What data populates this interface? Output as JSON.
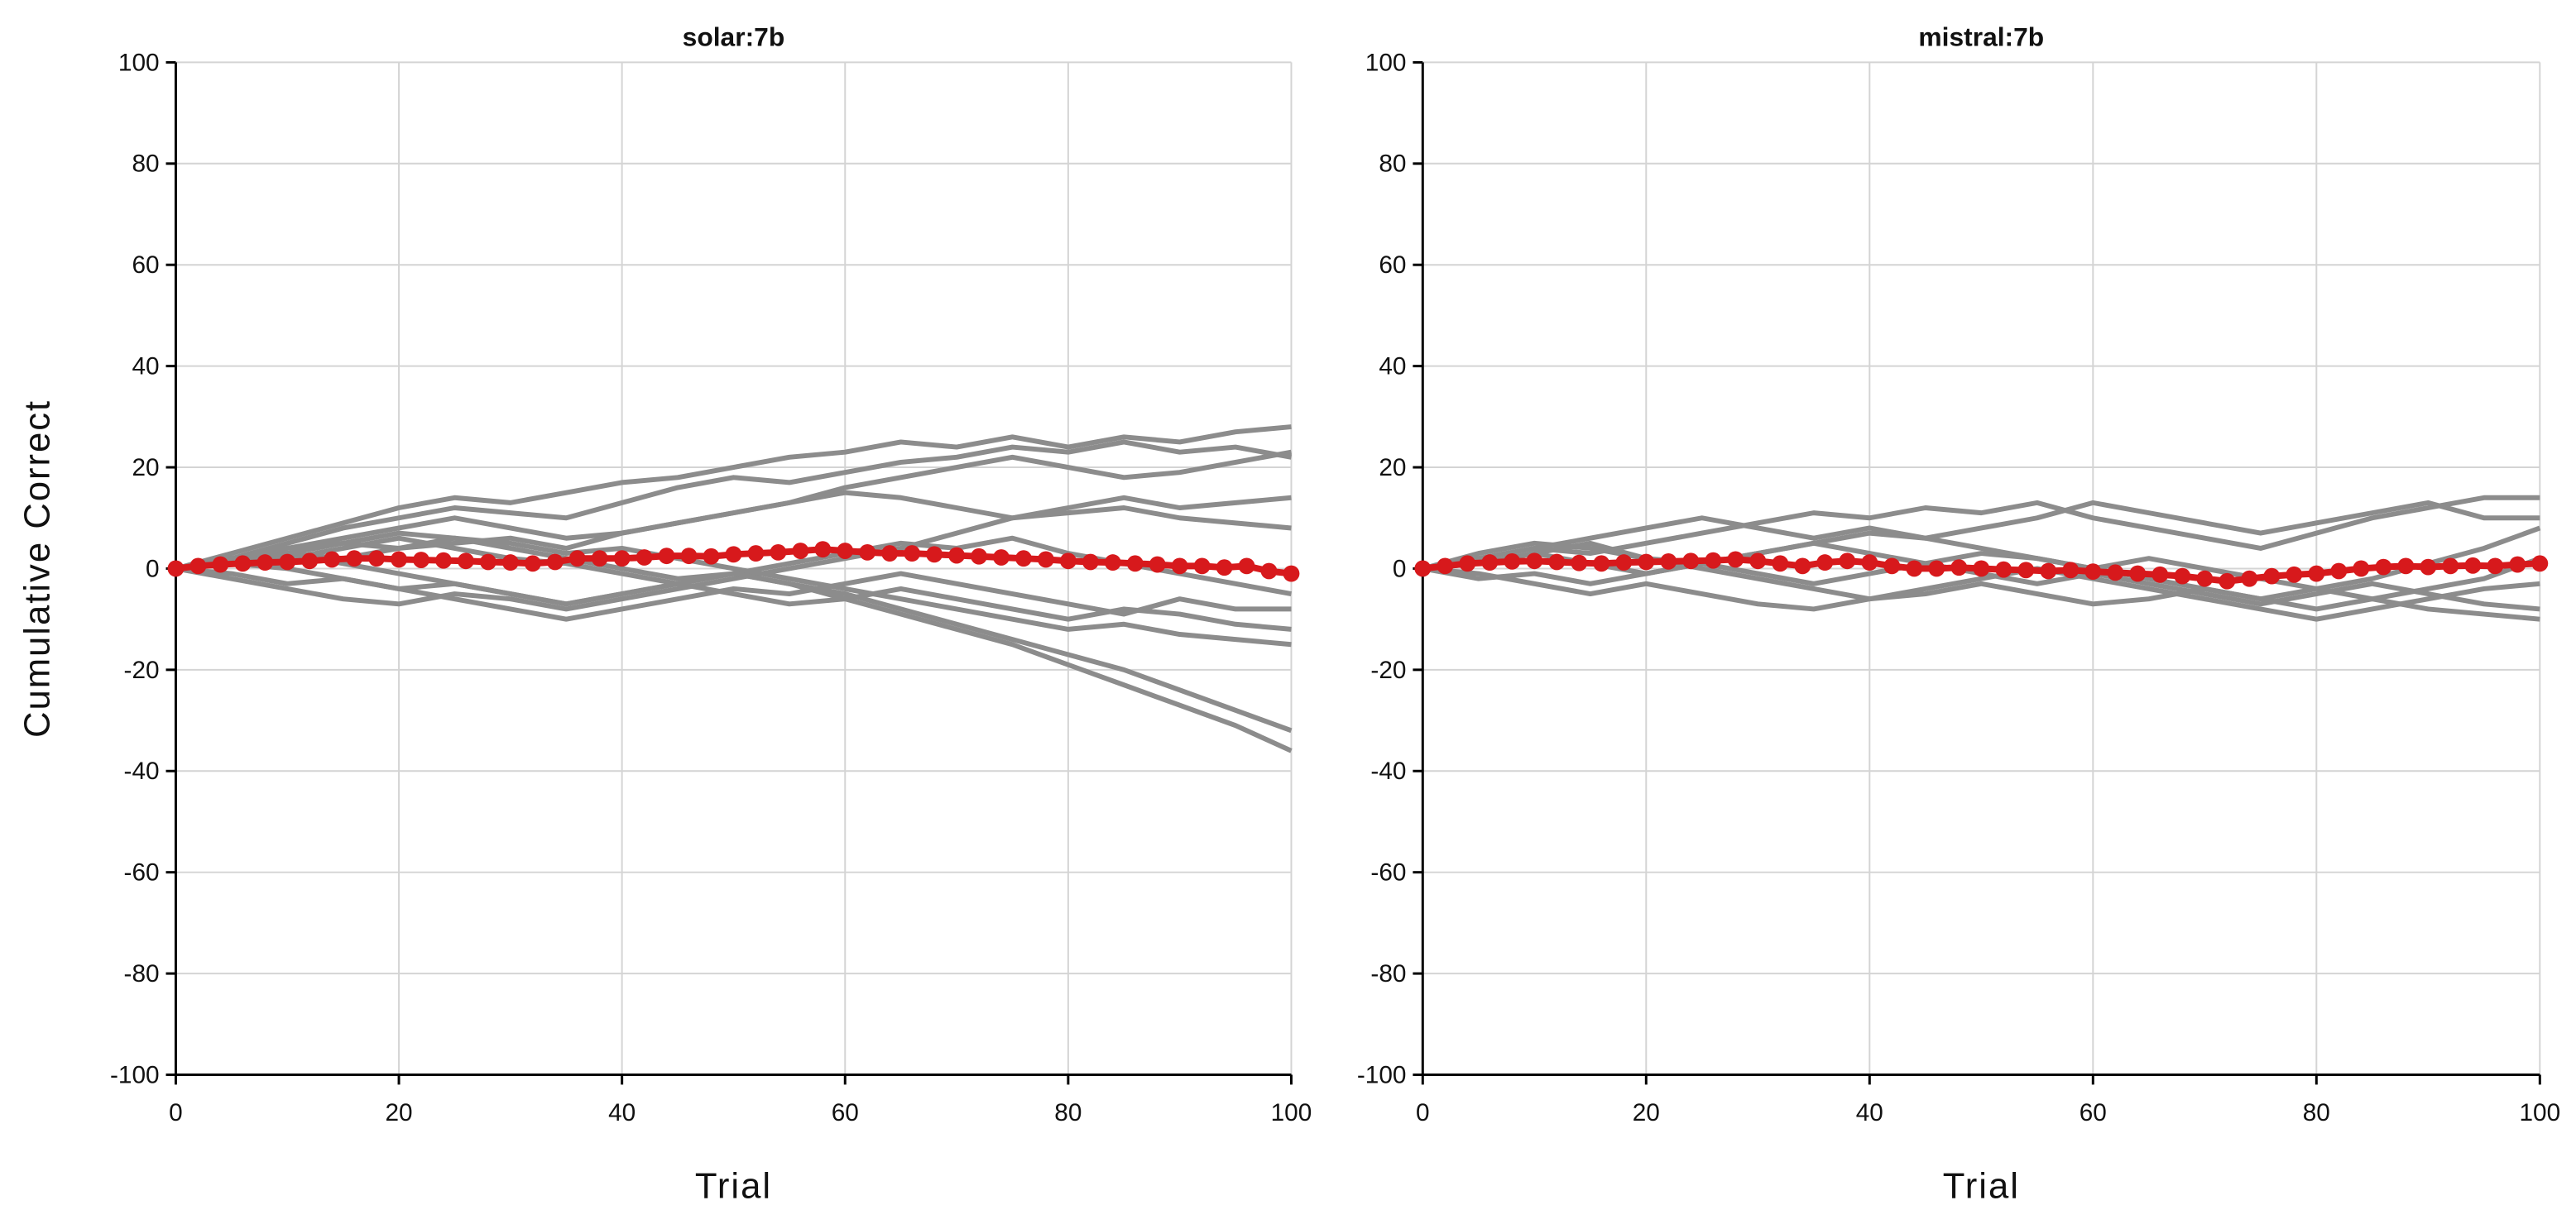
{
  "chart_data": [
    {
      "type": "line",
      "title": "solar:7b",
      "xlabel": "Trial",
      "ylabel": "Cumulative Correct",
      "x": [
        0,
        5,
        10,
        15,
        20,
        25,
        30,
        35,
        40,
        45,
        50,
        55,
        60,
        65,
        70,
        75,
        80,
        85,
        90,
        95,
        100
      ],
      "xlim": [
        0,
        100
      ],
      "xticks": [
        0,
        20,
        40,
        60,
        80,
        100
      ],
      "ylim": [
        -100,
        100
      ],
      "yticks": [
        -100,
        -80,
        -60,
        -40,
        -20,
        0,
        20,
        40,
        60,
        80,
        100
      ],
      "grid": true,
      "series": [
        {
          "color": "#8c8c8c",
          "values": [
            0,
            3,
            6,
            9,
            12,
            14,
            13,
            15,
            17,
            18,
            20,
            22,
            23,
            25,
            24,
            26,
            24,
            26,
            25,
            27,
            28
          ]
        },
        {
          "color": "#8c8c8c",
          "values": [
            0,
            2,
            5,
            8,
            10,
            12,
            11,
            10,
            13,
            16,
            18,
            17,
            19,
            21,
            22,
            24,
            23,
            25,
            23,
            24,
            22
          ]
        },
        {
          "color": "#8c8c8c",
          "values": [
            0,
            -2,
            -4,
            -6,
            -7,
            -5,
            -6,
            -8,
            -6,
            -4,
            -2,
            0,
            2,
            4,
            7,
            10,
            12,
            14,
            12,
            13,
            14
          ]
        },
        {
          "color": "#8c8c8c",
          "values": [
            0,
            1,
            3,
            2,
            4,
            5,
            6,
            4,
            7,
            9,
            11,
            13,
            15,
            14,
            12,
            10,
            11,
            12,
            10,
            9,
            8
          ]
        },
        {
          "color": "#8c8c8c",
          "values": [
            0,
            2,
            3,
            1,
            -1,
            -3,
            -5,
            -7,
            -5,
            -3,
            -1,
            1,
            3,
            5,
            4,
            6,
            3,
            1,
            -1,
            -3,
            -5
          ]
        },
        {
          "color": "#8c8c8c",
          "values": [
            0,
            -1,
            -3,
            -2,
            -4,
            -6,
            -8,
            -10,
            -8,
            -6,
            -4,
            -5,
            -3,
            -1,
            -3,
            -5,
            -7,
            -9,
            -6,
            -8,
            -8
          ]
        },
        {
          "color": "#8c8c8c",
          "values": [
            0,
            1,
            2,
            4,
            6,
            4,
            2,
            1,
            -1,
            -3,
            -5,
            -7,
            -6,
            -4,
            -6,
            -8,
            -10,
            -8,
            -9,
            -11,
            -12
          ]
        },
        {
          "color": "#8c8c8c",
          "values": [
            0,
            1,
            3,
            5,
            4,
            6,
            5,
            3,
            4,
            2,
            0,
            -2,
            -4,
            -6,
            -8,
            -10,
            -12,
            -11,
            -13,
            -14,
            -15
          ]
        },
        {
          "color": "#8c8c8c",
          "values": [
            0,
            2,
            4,
            5,
            7,
            6,
            4,
            2,
            0,
            -2,
            -1,
            -3,
            -5,
            -8,
            -11,
            -14,
            -17,
            -20,
            -24,
            -28,
            -32
          ]
        },
        {
          "color": "#8c8c8c",
          "values": [
            0,
            1,
            0,
            -2,
            -4,
            -3,
            -5,
            -7,
            -5,
            -3,
            -1,
            -3,
            -6,
            -9,
            -12,
            -15,
            -19,
            -23,
            -27,
            -31,
            -36
          ]
        },
        {
          "color": "#8c8c8c",
          "values": [
            0,
            2,
            4,
            6,
            8,
            10,
            8,
            6,
            7,
            9,
            11,
            13,
            16,
            18,
            20,
            22,
            20,
            18,
            19,
            21,
            23
          ]
        },
        {
          "color": "#d7191c",
          "markers": true,
          "x": [
            0,
            2,
            4,
            6,
            8,
            10,
            12,
            14,
            16,
            18,
            20,
            22,
            24,
            26,
            28,
            30,
            32,
            34,
            36,
            38,
            40,
            42,
            44,
            46,
            48,
            50,
            52,
            54,
            56,
            58,
            60,
            62,
            64,
            66,
            68,
            70,
            72,
            74,
            76,
            78,
            80,
            82,
            84,
            86,
            88,
            90,
            92,
            94,
            96,
            98,
            100
          ],
          "values": [
            0,
            0.5,
            0.8,
            1,
            1.2,
            1.3,
            1.5,
            1.8,
            2,
            2,
            1.8,
            1.7,
            1.6,
            1.5,
            1.3,
            1.2,
            1,
            1.3,
            2,
            2,
            2,
            2.2,
            2.5,
            2.5,
            2.4,
            2.8,
            3,
            3.2,
            3.5,
            3.8,
            3.5,
            3.2,
            3,
            3,
            2.8,
            2.6,
            2.4,
            2.2,
            2,
            1.8,
            1.5,
            1.3,
            1.2,
            1,
            0.8,
            0.5,
            0.5,
            0.2,
            0.5,
            -0.5,
            -1
          ]
        }
      ]
    },
    {
      "type": "line",
      "title": "mistral:7b",
      "xlabel": "Trial",
      "x": [
        0,
        5,
        10,
        15,
        20,
        25,
        30,
        35,
        40,
        45,
        50,
        55,
        60,
        65,
        70,
        75,
        80,
        85,
        90,
        95,
        100
      ],
      "xlim": [
        0,
        100
      ],
      "xticks": [
        0,
        20,
        40,
        60,
        80,
        100
      ],
      "ylim": [
        -100,
        100
      ],
      "yticks": [
        -100,
        -80,
        -60,
        -40,
        -20,
        0,
        20,
        40,
        60,
        80,
        100
      ],
      "grid": true,
      "series": [
        {
          "color": "#8c8c8c",
          "values": [
            0,
            2,
            4,
            3,
            5,
            7,
            9,
            11,
            10,
            12,
            11,
            13,
            10,
            8,
            6,
            4,
            7,
            10,
            12,
            14,
            14
          ]
        },
        {
          "color": "#8c8c8c",
          "values": [
            0,
            -2,
            -1,
            -3,
            -1,
            1,
            3,
            5,
            7,
            6,
            8,
            10,
            13,
            11,
            9,
            7,
            9,
            11,
            13,
            10,
            10
          ]
        },
        {
          "color": "#8c8c8c",
          "values": [
            0,
            1,
            3,
            5,
            2,
            0,
            -2,
            -4,
            -6,
            -5,
            -3,
            -5,
            -7,
            -6,
            -4,
            -6,
            -4,
            -2,
            1,
            4,
            8
          ]
        },
        {
          "color": "#8c8c8c",
          "values": [
            0,
            3,
            5,
            4,
            2,
            1,
            -1,
            -3,
            -1,
            1,
            3,
            2,
            0,
            -2,
            -4,
            -6,
            -8,
            -6,
            -4,
            -2,
            2
          ]
        },
        {
          "color": "#8c8c8c",
          "values": [
            0,
            -1,
            -3,
            -5,
            -3,
            -5,
            -7,
            -8,
            -6,
            -4,
            -2,
            0,
            -2,
            -4,
            -6,
            -8,
            -10,
            -8,
            -6,
            -4,
            -3
          ]
        },
        {
          "color": "#8c8c8c",
          "values": [
            0,
            1,
            3,
            1,
            -1,
            1,
            3,
            5,
            3,
            1,
            -1,
            -3,
            -1,
            -3,
            -5,
            -7,
            -5,
            -3,
            -5,
            -7,
            -8
          ]
        },
        {
          "color": "#8c8c8c",
          "values": [
            0,
            2,
            4,
            6,
            8,
            10,
            8,
            6,
            8,
            6,
            4,
            2,
            0,
            2,
            0,
            -2,
            -4,
            -6,
            -8,
            -9,
            -10
          ]
        },
        {
          "color": "#d7191c",
          "markers": true,
          "x": [
            0,
            2,
            4,
            6,
            8,
            10,
            12,
            14,
            16,
            18,
            20,
            22,
            24,
            26,
            28,
            30,
            32,
            34,
            36,
            38,
            40,
            42,
            44,
            46,
            48,
            50,
            52,
            54,
            56,
            58,
            60,
            62,
            64,
            66,
            68,
            70,
            72,
            74,
            76,
            78,
            80,
            82,
            84,
            86,
            88,
            90,
            92,
            94,
            96,
            98,
            100
          ],
          "values": [
            0,
            0.5,
            1,
            1.2,
            1.4,
            1.5,
            1.3,
            1.1,
            1,
            1.2,
            1.3,
            1.4,
            1.5,
            1.6,
            1.8,
            1.5,
            1,
            0.5,
            1.2,
            1.5,
            1.2,
            0.5,
            0,
            0,
            0.2,
            0,
            -0.2,
            -0.3,
            -0.5,
            -0.3,
            -0.6,
            -0.8,
            -1,
            -1.2,
            -1.5,
            -2,
            -2.5,
            -2,
            -1.5,
            -1.2,
            -1,
            -0.5,
            0,
            0.3,
            0.5,
            0.3,
            0.5,
            0.6,
            0.5,
            0.8,
            1
          ]
        }
      ]
    }
  ]
}
